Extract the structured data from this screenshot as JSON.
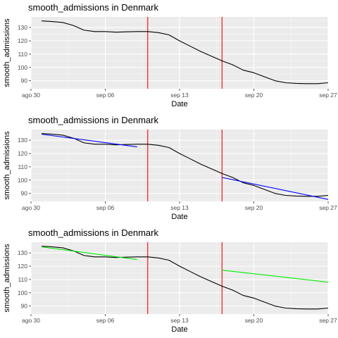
{
  "chart_data": [
    {
      "type": "line",
      "title": "smooth_admissions in Denmark",
      "xlabel": "Date",
      "ylabel": "smooth_admissions",
      "x_ticks": [
        "ago 30",
        "sep 06",
        "sep 13",
        "sep 20",
        "sep 27"
      ],
      "y_ticks": [
        90,
        100,
        110,
        120,
        130
      ],
      "xlim": [
        "2020-08-30",
        "2020-09-27"
      ],
      "ylim": [
        84,
        138
      ],
      "grid": true,
      "vlines": [
        "2020-09-10",
        "2020-09-17"
      ],
      "vline_color": "#ff0000",
      "series": [
        {
          "color": "#000000",
          "x": [
            "2020-08-31",
            "2020-09-01",
            "2020-09-02",
            "2020-09-03",
            "2020-09-04",
            "2020-09-05",
            "2020-09-06",
            "2020-09-07",
            "2020-09-08",
            "2020-09-09",
            "2020-09-10",
            "2020-09-11",
            "2020-09-12",
            "2020-09-13",
            "2020-09-14",
            "2020-09-15",
            "2020-09-16",
            "2020-09-17",
            "2020-09-18",
            "2020-09-19",
            "2020-09-20",
            "2020-09-21",
            "2020-09-22",
            "2020-09-23",
            "2020-09-24",
            "2020-09-25",
            "2020-09-26",
            "2020-09-27"
          ],
          "y": [
            135,
            134.5,
            133.8,
            131.5,
            128,
            127,
            127,
            126.5,
            126.8,
            127,
            127,
            126.2,
            124.5,
            120,
            116,
            112,
            108.5,
            105,
            102,
            98,
            96,
            93,
            90,
            88.5,
            88,
            87.8,
            87.8,
            88.5
          ]
        }
      ]
    },
    {
      "type": "line",
      "title": "smooth_admissions in Denmark",
      "xlabel": "Date",
      "ylabel": "smooth_admissions",
      "x_ticks": [
        "ago 30",
        "sep 06",
        "sep 13",
        "sep 20",
        "sep 27"
      ],
      "y_ticks": [
        90,
        100,
        110,
        120,
        130
      ],
      "xlim": [
        "2020-08-30",
        "2020-09-27"
      ],
      "ylim": [
        84,
        138
      ],
      "grid": true,
      "vlines": [
        "2020-09-10",
        "2020-09-17"
      ],
      "vline_color": "#ff0000",
      "series": [
        {
          "color": "#000000",
          "x": [
            "2020-08-31",
            "2020-09-01",
            "2020-09-02",
            "2020-09-03",
            "2020-09-04",
            "2020-09-05",
            "2020-09-06",
            "2020-09-07",
            "2020-09-08",
            "2020-09-09",
            "2020-09-10",
            "2020-09-11",
            "2020-09-12",
            "2020-09-13",
            "2020-09-14",
            "2020-09-15",
            "2020-09-16",
            "2020-09-17",
            "2020-09-18",
            "2020-09-19",
            "2020-09-20",
            "2020-09-21",
            "2020-09-22",
            "2020-09-23",
            "2020-09-24",
            "2020-09-25",
            "2020-09-26",
            "2020-09-27"
          ],
          "y": [
            135,
            134.5,
            133.8,
            131.5,
            128,
            127,
            127,
            126.5,
            126.8,
            127,
            127,
            126.2,
            124.5,
            120,
            116,
            112,
            108.5,
            105,
            102,
            98,
            96,
            93,
            90,
            88.5,
            88,
            87.8,
            87.8,
            88.5
          ]
        },
        {
          "color": "#0000ff",
          "x": [
            "2020-08-31",
            "2020-09-09"
          ],
          "y": [
            134.5,
            125
          ]
        },
        {
          "color": "#0000ff",
          "x": [
            "2020-09-17",
            "2020-09-27"
          ],
          "y": [
            102,
            85.5
          ]
        }
      ]
    },
    {
      "type": "line",
      "title": "smooth_admissions in Denmark",
      "xlabel": "Date",
      "ylabel": "smooth_admissions",
      "x_ticks": [
        "ago 30",
        "sep 06",
        "sep 13",
        "sep 20",
        "sep 27"
      ],
      "y_ticks": [
        90,
        100,
        110,
        120,
        130
      ],
      "xlim": [
        "2020-08-30",
        "2020-09-27"
      ],
      "ylim": [
        84,
        138
      ],
      "grid": true,
      "vlines": [
        "2020-09-10",
        "2020-09-17"
      ],
      "vline_color": "#ff0000",
      "series": [
        {
          "color": "#000000",
          "x": [
            "2020-08-31",
            "2020-09-01",
            "2020-09-02",
            "2020-09-03",
            "2020-09-04",
            "2020-09-05",
            "2020-09-06",
            "2020-09-07",
            "2020-09-08",
            "2020-09-09",
            "2020-09-10",
            "2020-09-11",
            "2020-09-12",
            "2020-09-13",
            "2020-09-14",
            "2020-09-15",
            "2020-09-16",
            "2020-09-17",
            "2020-09-18",
            "2020-09-19",
            "2020-09-20",
            "2020-09-21",
            "2020-09-22",
            "2020-09-23",
            "2020-09-24",
            "2020-09-25",
            "2020-09-26",
            "2020-09-27"
          ],
          "y": [
            135,
            134.5,
            133.8,
            131.5,
            128,
            127,
            127,
            126.5,
            126.8,
            127,
            127,
            126.2,
            124.5,
            120,
            116,
            112,
            108.5,
            105,
            102,
            98,
            96,
            93,
            90,
            88.5,
            88,
            87.8,
            87.8,
            88.5
          ]
        },
        {
          "color": "#00ee00",
          "x": [
            "2020-08-31",
            "2020-09-09"
          ],
          "y": [
            134.5,
            125
          ]
        },
        {
          "color": "#00ee00",
          "x": [
            "2020-09-17",
            "2020-09-27"
          ],
          "y": [
            117,
            108
          ]
        }
      ]
    }
  ]
}
